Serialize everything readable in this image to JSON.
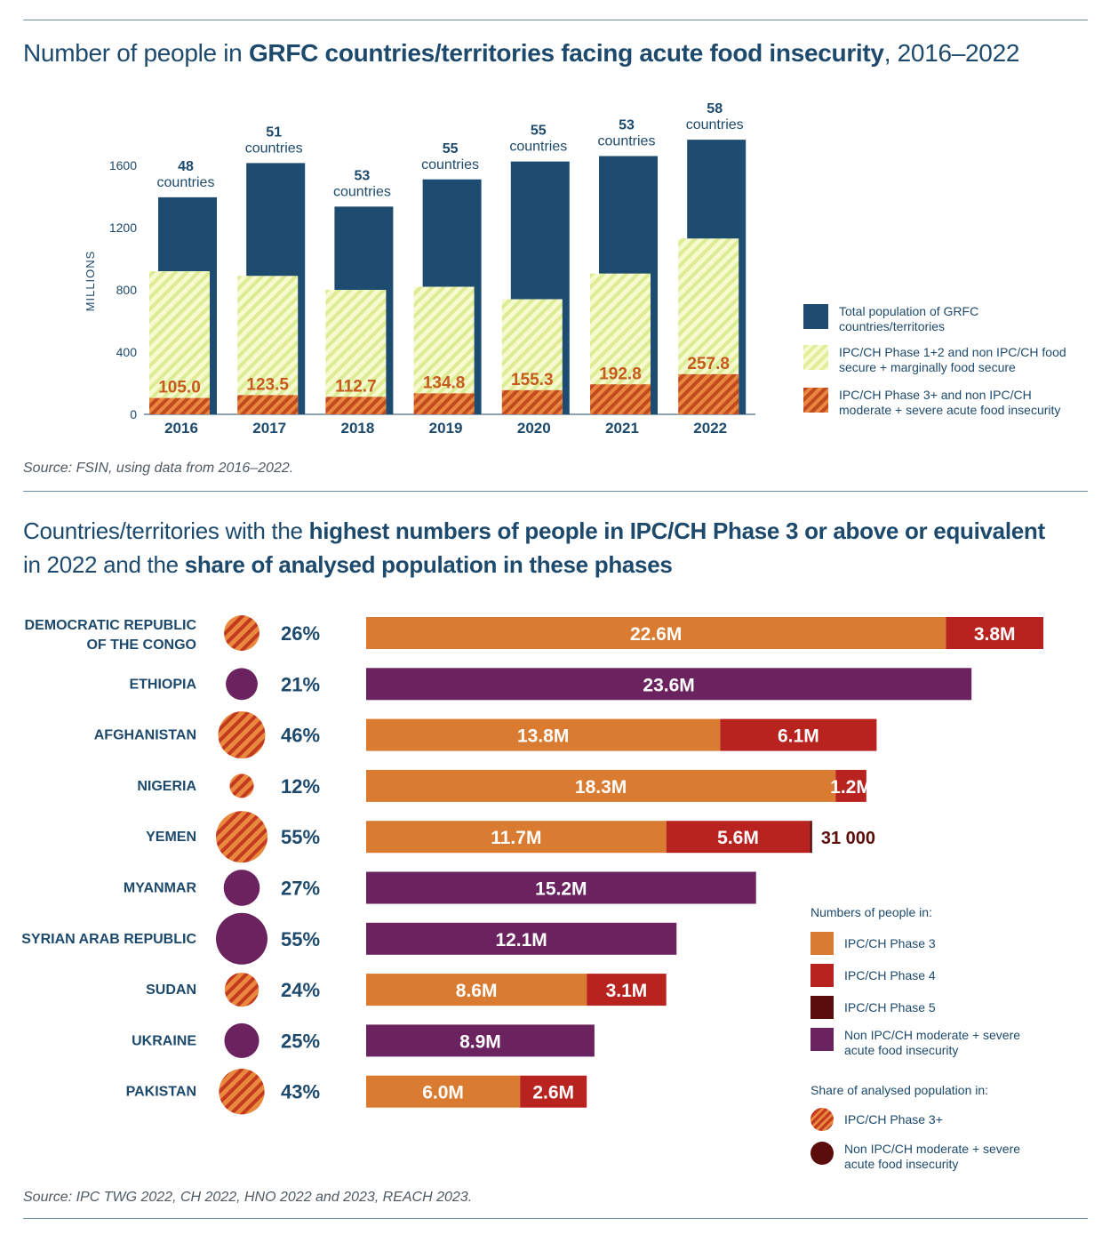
{
  "chart_data": [
    {
      "type": "bar",
      "title_parts": [
        "Number of people in ",
        "GRFC countries/territories facing acute food insecurity",
        ", 2016–2022"
      ],
      "ylabel": "MILLIONS",
      "ylim": [
        0,
        1600
      ],
      "yticks": [
        0,
        400,
        800,
        1200,
        1600
      ],
      "categories": [
        "2016",
        "2017",
        "2018",
        "2019",
        "2020",
        "2021",
        "2022"
      ],
      "country_counts": [
        "48",
        "51",
        "53",
        "55",
        "55",
        "53",
        "58"
      ],
      "country_word": "countries",
      "series": [
        {
          "name": "Total population of GRFC countries/territories",
          "values": [
            1395,
            1615,
            1335,
            1510,
            1625,
            1660,
            1765
          ]
        },
        {
          "name": "IPC/CH Phase 1+2 and non IPC/CH food secure + marginally food secure",
          "values": [
            920,
            890,
            800,
            820,
            740,
            905,
            1130
          ]
        },
        {
          "name": "IPC/CH Phase 3+ and non IPC/CH moderate + severe acute food insecurity",
          "values": [
            105.0,
            123.5,
            112.7,
            134.8,
            155.3,
            192.8,
            257.8
          ]
        }
      ],
      "value_labels": [
        "105.0",
        "123.5",
        "112.7",
        "134.8",
        "155.3",
        "192.8",
        "257.8"
      ],
      "legend": {
        "placement": "right",
        "items": [
          {
            "line1": "Total population of GRFC",
            "line2": "countries/territories"
          },
          {
            "line1": "IPC/CH Phase 1+2 and non IPC/CH food",
            "line2": "secure + marginally food secure"
          },
          {
            "line1": "IPC/CH Phase 3+ and non IPC/CH",
            "line2": "moderate + severe acute food insecurity"
          }
        ]
      },
      "source": "Source: FSIN, using data from 2016–2022."
    },
    {
      "type": "bar",
      "orientation": "horizontal",
      "stacked": true,
      "title_line1_parts": [
        "Countries/territories with the ",
        "highest numbers of people in IPC/CH Phase 3 or above or equivalent"
      ],
      "title_line2_parts": [
        "in 2022 and the ",
        "share of analysed population in these phases"
      ],
      "xlim": [
        0,
        26.4
      ],
      "categories": [
        {
          "lines": [
            "DEMOCRATIC REPUBLIC",
            "OF THE CONGO"
          ],
          "share": "26%",
          "share_value": 26,
          "share_kind": "ipc",
          "segments": [
            {
              "phase": "p3",
              "value": 22.6,
              "label": "22.6M"
            },
            {
              "phase": "p4",
              "value": 3.8,
              "label": "3.8M"
            }
          ]
        },
        {
          "lines": [
            "ETHIOPIA"
          ],
          "share": "21%",
          "share_value": 21,
          "share_kind": "non",
          "segments": [
            {
              "phase": "non",
              "value": 23.6,
              "label": "23.6M"
            }
          ]
        },
        {
          "lines": [
            "AFGHANISTAN"
          ],
          "share": "46%",
          "share_value": 46,
          "share_kind": "ipc",
          "segments": [
            {
              "phase": "p3",
              "value": 13.8,
              "label": "13.8M"
            },
            {
              "phase": "p4",
              "value": 6.1,
              "label": "6.1M"
            }
          ]
        },
        {
          "lines": [
            "NIGERIA"
          ],
          "share": "12%",
          "share_value": 12,
          "share_kind": "ipc",
          "segments": [
            {
              "phase": "p3",
              "value": 18.3,
              "label": "18.3M"
            },
            {
              "phase": "p4",
              "value": 1.2,
              "label": "1.2M"
            }
          ]
        },
        {
          "lines": [
            "YEMEN"
          ],
          "share": "55%",
          "share_value": 55,
          "share_kind": "ipc",
          "segments": [
            {
              "phase": "p3",
              "value": 11.7,
              "label": "11.7M"
            },
            {
              "phase": "p4",
              "value": 5.6,
              "label": "5.6M"
            },
            {
              "phase": "p5",
              "value": 0.031,
              "label": "31 000",
              "label_outside": true
            }
          ]
        },
        {
          "lines": [
            "MYANMAR"
          ],
          "share": "27%",
          "share_value": 27,
          "share_kind": "non",
          "segments": [
            {
              "phase": "non",
              "value": 15.2,
              "label": "15.2M"
            }
          ]
        },
        {
          "lines": [
            "SYRIAN ARAB REPUBLIC"
          ],
          "share": "55%",
          "share_value": 55,
          "share_kind": "non",
          "segments": [
            {
              "phase": "non",
              "value": 12.1,
              "label": "12.1M"
            }
          ]
        },
        {
          "lines": [
            "SUDAN"
          ],
          "share": "24%",
          "share_value": 24,
          "share_kind": "ipc",
          "segments": [
            {
              "phase": "p3",
              "value": 8.6,
              "label": "8.6M"
            },
            {
              "phase": "p4",
              "value": 3.1,
              "label": "3.1M"
            }
          ]
        },
        {
          "lines": [
            "UKRAINE"
          ],
          "share": "25%",
          "share_value": 25,
          "share_kind": "non",
          "segments": [
            {
              "phase": "non",
              "value": 8.9,
              "label": "8.9M"
            }
          ]
        },
        {
          "lines": [
            "PAKISTAN"
          ],
          "share": "43%",
          "share_value": 43,
          "share_kind": "ipc",
          "segments": [
            {
              "phase": "p3",
              "value": 6.0,
              "label": "6.0M"
            },
            {
              "phase": "p4",
              "value": 2.6,
              "label": "2.6M"
            }
          ]
        }
      ],
      "colors": {
        "p3": "#d97c32",
        "p4": "#b9231f",
        "p5": "#5a0d0a",
        "non": "#6b2360"
      },
      "legend": {
        "placement": "bottom-right",
        "numbers_heading": "Numbers of people in:",
        "numbers_items": [
          {
            "key": "p3",
            "line1": "IPC/CH Phase 3",
            "line2": ""
          },
          {
            "key": "p4",
            "line1": "IPC/CH Phase 4",
            "line2": ""
          },
          {
            "key": "p5",
            "line1": "IPC/CH Phase 5",
            "line2": ""
          },
          {
            "key": "non",
            "line1": "Non IPC/CH moderate + severe",
            "line2": "acute food insecurity"
          }
        ],
        "share_heading": "Share of analysed population in:",
        "share_items": [
          {
            "key": "ipc",
            "line1": "IPC/CH Phase 3+",
            "line2": ""
          },
          {
            "key": "non",
            "line1": "Non IPC/CH moderate + severe",
            "line2": "acute food insecurity"
          }
        ]
      },
      "source": "Source: IPC TWG 2022, CH 2022, HNO 2022 and 2023, REACH 2023."
    }
  ]
}
